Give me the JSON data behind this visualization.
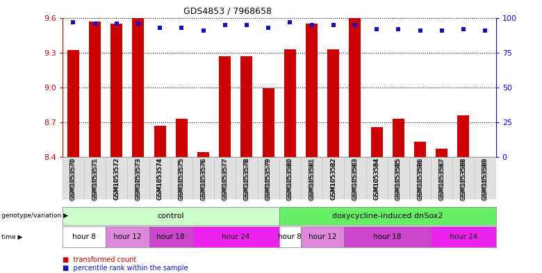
{
  "title": "GDS4853 / 7968658",
  "samples": [
    "GSM1053570",
    "GSM1053571",
    "GSM1053572",
    "GSM1053573",
    "GSM1053574",
    "GSM1053575",
    "GSM1053576",
    "GSM1053577",
    "GSM1053578",
    "GSM1053579",
    "GSM1053580",
    "GSM1053581",
    "GSM1053582",
    "GSM1053583",
    "GSM1053584",
    "GSM1053585",
    "GSM1053586",
    "GSM1053587",
    "GSM1053588",
    "GSM1053589"
  ],
  "bar_values": [
    9.32,
    9.57,
    9.55,
    9.6,
    8.67,
    8.73,
    8.44,
    9.27,
    9.27,
    8.99,
    9.33,
    9.55,
    9.33,
    9.6,
    8.66,
    8.73,
    8.53,
    8.47,
    8.76,
    8.4
  ],
  "percentile_values": [
    97,
    96,
    96,
    96,
    93,
    93,
    91,
    95,
    95,
    93,
    97,
    95,
    95,
    95,
    92,
    92,
    91,
    91,
    92,
    91
  ],
  "ymin": 8.4,
  "ymax": 9.6,
  "yticks": [
    8.4,
    8.7,
    9.0,
    9.3,
    9.6
  ],
  "right_yticks": [
    0,
    25,
    50,
    75,
    100
  ],
  "bar_color": "#cc0000",
  "dot_color": "#1111cc",
  "genotype_groups": [
    {
      "label": "control",
      "start": 0,
      "end": 10,
      "color": "#ccffcc"
    },
    {
      "label": "doxycycline-induced dnSox2",
      "start": 10,
      "end": 20,
      "color": "#66ee66"
    }
  ],
  "time_groups": [
    {
      "label": "hour 8",
      "start": 0,
      "end": 2,
      "color": "#ffffff"
    },
    {
      "label": "hour 12",
      "start": 2,
      "end": 4,
      "color": "#dd88dd"
    },
    {
      "label": "hour 18",
      "start": 4,
      "end": 6,
      "color": "#cc44cc"
    },
    {
      "label": "hour 24",
      "start": 6,
      "end": 10,
      "color": "#ee22ee"
    },
    {
      "label": "hour 8",
      "start": 10,
      "end": 11,
      "color": "#ffffff"
    },
    {
      "label": "hour 12",
      "start": 11,
      "end": 13,
      "color": "#dd88dd"
    },
    {
      "label": "hour 18",
      "start": 13,
      "end": 17,
      "color": "#cc44cc"
    },
    {
      "label": "hour 24",
      "start": 17,
      "end": 20,
      "color": "#ee22ee"
    }
  ],
  "legend_items": [
    {
      "label": "transformed count",
      "color": "#cc0000"
    },
    {
      "label": "percentile rank within the sample",
      "color": "#1111cc"
    }
  ]
}
